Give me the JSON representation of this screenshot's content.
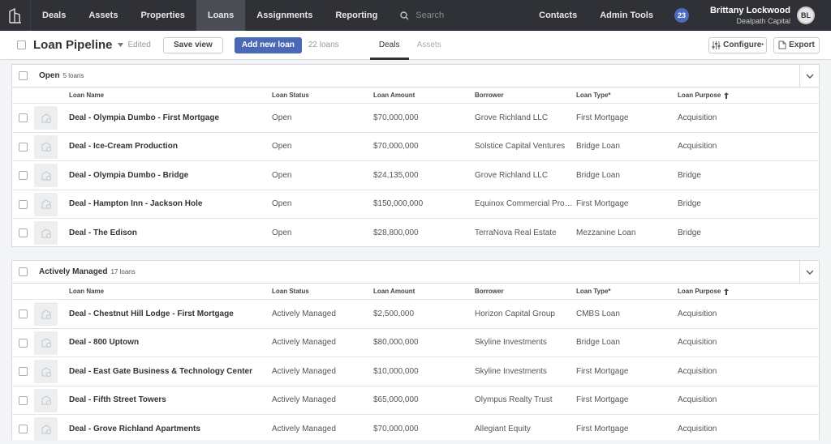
{
  "nav": {
    "items": [
      {
        "label": "Deals",
        "active": false
      },
      {
        "label": "Assets",
        "active": false
      },
      {
        "label": "Properties",
        "active": false
      },
      {
        "label": "Loans",
        "active": true
      },
      {
        "label": "Assignments",
        "active": false
      },
      {
        "label": "Reporting",
        "active": false
      }
    ],
    "search_placeholder": "Search",
    "contacts": "Contacts",
    "admin_tools": "Admin Tools",
    "notifications": "23",
    "user_name": "Brittany Lockwood",
    "user_org": "Dealpath Capital",
    "user_initials": "BL"
  },
  "toolbar": {
    "title": "Loan Pipeline",
    "edited": "Edited",
    "save_view": "Save view",
    "add_new_loan": "Add new loan",
    "loan_count": "22 loans",
    "tabs": [
      {
        "label": "Deals",
        "active": true
      },
      {
        "label": "Assets",
        "active": false
      }
    ],
    "configure": "Configure",
    "export": "Export"
  },
  "columns": {
    "name": "Loan Name",
    "status": "Loan Status",
    "amount": "Loan Amount",
    "borrower": "Borrower",
    "type": "Loan Type*",
    "purpose": "Loan Purpose"
  },
  "groups": [
    {
      "title": "Open",
      "count": "5 loans",
      "rows": [
        {
          "name": "Deal - Olympia Dumbo - First Mortgage",
          "status": "Open",
          "amount": "$70,000,000",
          "borrower": "Grove Richland LLC",
          "type": "First Mortgage",
          "purpose": "Acquisition"
        },
        {
          "name": "Deal - Ice-Cream Production",
          "status": "Open",
          "amount": "$70,000,000",
          "borrower": "Solstice Capital Ventures",
          "type": "Bridge Loan",
          "purpose": "Acquisition"
        },
        {
          "name": "Deal - Olympia Dumbo - Bridge",
          "status": "Open",
          "amount": "$24,135,000",
          "borrower": "Grove Richland LLC",
          "type": "Bridge Loan",
          "purpose": "Bridge"
        },
        {
          "name": "Deal - Hampton Inn - Jackson Hole",
          "status": "Open",
          "amount": "$150,000,000",
          "borrower": "Equinox Commercial Prop...",
          "type": "First Mortgage",
          "purpose": "Bridge"
        },
        {
          "name": "Deal - The Edison",
          "status": "Open",
          "amount": "$28,800,000",
          "borrower": "TerraNova Real Estate",
          "type": "Mezzanine Loan",
          "purpose": "Bridge"
        }
      ]
    },
    {
      "title": "Actively Managed",
      "count": "17 loans",
      "rows": [
        {
          "name": "Deal - Chestnut Hill Lodge - First Mortgage",
          "status": "Actively Managed",
          "amount": "$2,500,000",
          "borrower": "Horizon Capital Group",
          "type": "CMBS Loan",
          "purpose": "Acquisition"
        },
        {
          "name": "Deal - 800 Uptown",
          "status": "Actively Managed",
          "amount": "$80,000,000",
          "borrower": "Skyline Investments",
          "type": "Bridge Loan",
          "purpose": "Acquisition"
        },
        {
          "name": "Deal - East Gate Business & Technology Center",
          "status": "Actively Managed",
          "amount": "$10,000,000",
          "borrower": "Skyline Investments",
          "type": "First Mortgage",
          "purpose": "Acquisition"
        },
        {
          "name": "Deal - Fifth Street Towers",
          "status": "Actively Managed",
          "amount": "$65,000,000",
          "borrower": "Olympus Realty Trust",
          "type": "First Mortgage",
          "purpose": "Acquisition"
        },
        {
          "name": "Deal - Grove Richland Apartments",
          "status": "Actively Managed",
          "amount": "$70,000,000",
          "borrower": "Allegiant Equity",
          "type": "First Mortgage",
          "purpose": "Acquisition"
        }
      ]
    }
  ]
}
